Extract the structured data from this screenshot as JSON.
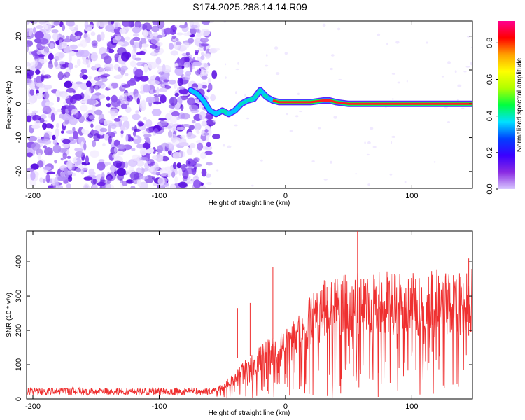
{
  "title": "S174.2025.288.14.14.R09",
  "chart_data": [
    {
      "type": "heatmap",
      "name": "spectrogram",
      "xlabel": "Height of straight line (km)",
      "ylabel": "Frequency (Hz)",
      "xlim": [
        -205,
        148
      ],
      "ylim": [
        -25,
        24.5
      ],
      "xticks": [
        -200,
        -100,
        0,
        100
      ],
      "yticks": [
        -20,
        -10,
        0,
        10,
        20
      ],
      "noise_region_x": [
        -205,
        -60
      ],
      "ridge": {
        "x": [
          -75,
          -70,
          -65,
          -60,
          -55,
          -50,
          -45,
          -40,
          -35,
          -30,
          -25,
          -20,
          -15,
          -10,
          -5,
          0,
          10,
          20,
          30,
          35,
          40,
          50,
          60,
          80,
          100,
          120,
          140,
          148
        ],
        "y": [
          4,
          3,
          1,
          -2,
          -3,
          -2,
          -3,
          -2,
          0,
          1,
          1.5,
          4,
          2,
          1,
          0.5,
          0.5,
          0.5,
          0.5,
          1,
          1,
          0.5,
          0,
          0,
          0,
          0,
          0,
          0,
          0
        ]
      },
      "colorbar": {
        "label": "Normalized spectral amplitude",
        "range": [
          0,
          0.92
        ],
        "ticks": [
          0.0,
          0.2,
          0.4,
          0.6,
          0.8
        ],
        "tick_labels": [
          "0.0",
          "0.2",
          "0.4",
          "0.6",
          "0.8"
        ],
        "colors": [
          "#ffffff",
          "#d8c8ff",
          "#8a2be2",
          "#3a00ff",
          "#0040ff",
          "#00e0ff",
          "#00ff40",
          "#b0ff00",
          "#ffff00",
          "#ffa000",
          "#ff0000",
          "#ff0090"
        ]
      }
    },
    {
      "type": "line",
      "name": "snr",
      "xlabel": "Height of straight line (km)",
      "ylabel": "SNR (10 * v/v)",
      "xlim": [
        -205,
        148
      ],
      "ylim": [
        0,
        490
      ],
      "xticks": [
        -200,
        -100,
        0,
        100
      ],
      "yticks": [
        0,
        100,
        200,
        300,
        400
      ],
      "color": "#ef3030",
      "envelope": {
        "x": [
          -205,
          -60,
          -50,
          -40,
          -30,
          -20,
          -10,
          0,
          10,
          20,
          30,
          40,
          60,
          80,
          100,
          120,
          148
        ],
        "y": [
          22,
          22,
          40,
          70,
          110,
          140,
          160,
          175,
          220,
          270,
          300,
          315,
          320,
          325,
          325,
          330,
          330
        ]
      },
      "spikes": [
        {
          "x": -38,
          "y": 265
        },
        {
          "x": -28,
          "y": 280
        },
        {
          "x": -10,
          "y": 385
        },
        {
          "x": 57,
          "y": 490
        },
        {
          "x": 145,
          "y": 410
        }
      ]
    }
  ]
}
